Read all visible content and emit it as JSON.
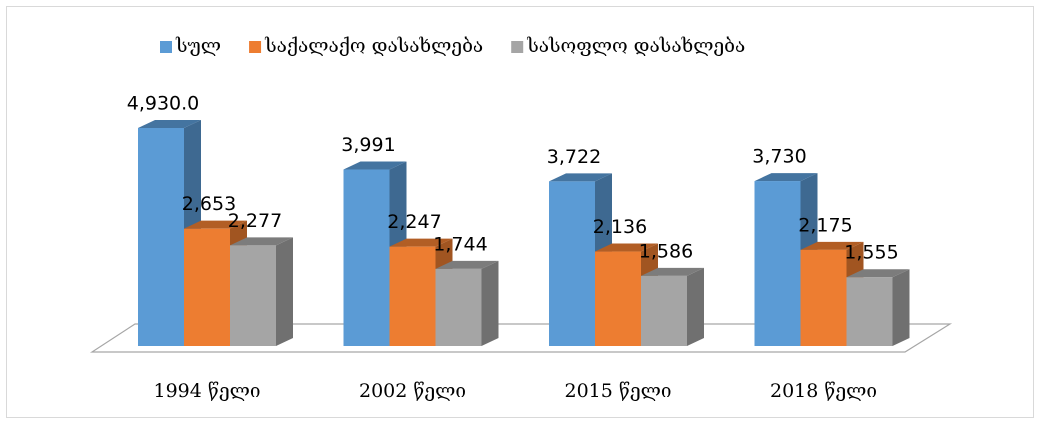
{
  "chart_data": {
    "type": "bar3d",
    "categories": [
      "1994 წელი",
      "2002 წელი",
      "2015 წელი",
      "2018 წელი"
    ],
    "series": [
      {
        "name": "სულ",
        "color": "#5b9bd5",
        "values": [
          4930.0,
          3991,
          3722,
          3730
        ],
        "value_labels": [
          "4,930.0",
          "3,991",
          "3,722",
          "3,730"
        ]
      },
      {
        "name": "საქალაქო დასახლება",
        "color": "#ed7d31",
        "values": [
          2653,
          2247,
          2136,
          2175
        ],
        "value_labels": [
          "2,653",
          "2,247",
          "2,136",
          "2,175"
        ]
      },
      {
        "name": "სასოფლო დასახლება",
        "color": "#a5a5a5",
        "values": [
          2277,
          1744,
          1586,
          1555
        ],
        "value_labels": [
          "2,277",
          "1,744",
          "1,586",
          "1,555"
        ]
      }
    ],
    "legend": "top"
  }
}
